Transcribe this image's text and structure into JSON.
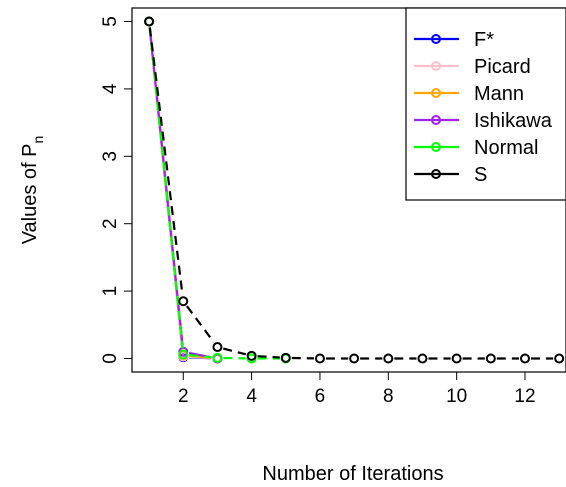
{
  "chart_data": {
    "type": "line",
    "title": "",
    "xlabel": "Number of Iterations",
    "ylabel_main": "Values of P",
    "ylabel_sub": "n",
    "xlim": [
      0.5,
      13.2
    ],
    "ylim": [
      -0.2,
      5.2
    ],
    "xticks": [
      2,
      4,
      6,
      8,
      10,
      12
    ],
    "yticks": [
      0,
      1,
      2,
      3,
      4,
      5
    ],
    "grid": false,
    "legend_position": "top-right",
    "series": [
      {
        "name": "F*",
        "color": "#0000ff",
        "dash": false,
        "x": [
          1,
          2,
          3
        ],
        "y": [
          5,
          0.02,
          0.0
        ]
      },
      {
        "name": "Picard",
        "color": "#ffc0cb",
        "dash": false,
        "x": [
          1,
          2,
          3
        ],
        "y": [
          5,
          0.03,
          0.0
        ]
      },
      {
        "name": "Mann",
        "color": "#ffa500",
        "dash": false,
        "x": [
          1,
          2,
          3
        ],
        "y": [
          5,
          0.05,
          0.0
        ]
      },
      {
        "name": "Ishikawa",
        "color": "#a020f0",
        "dash": false,
        "x": [
          1,
          2,
          3
        ],
        "y": [
          5,
          0.1,
          0.0
        ]
      },
      {
        "name": "Normal",
        "color": "#00ff00",
        "dash": true,
        "x": [
          1,
          2,
          3,
          4,
          5
        ],
        "y": [
          5,
          0.06,
          0.01,
          0.0,
          0.0
        ]
      },
      {
        "name": "S",
        "color": "#000000",
        "dash": true,
        "x": [
          1,
          2,
          3,
          4,
          5,
          6,
          7,
          8,
          9,
          10,
          11,
          12,
          13
        ],
        "y": [
          5,
          0.85,
          0.17,
          0.04,
          0.01,
          0.0,
          0.0,
          0.0,
          0.0,
          0.0,
          0.0,
          0.0,
          0.0
        ]
      }
    ]
  }
}
